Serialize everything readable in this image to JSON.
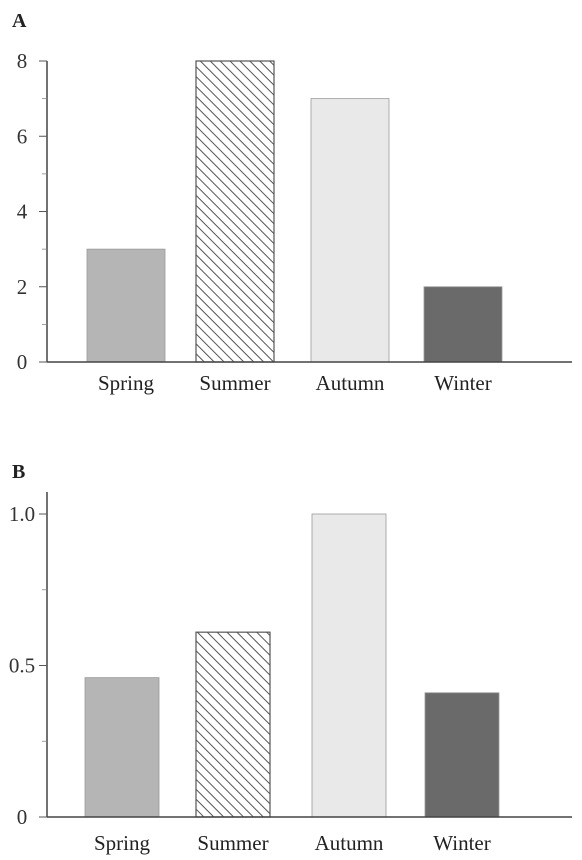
{
  "chart_data": [
    {
      "type": "bar",
      "panel_label": "A",
      "categories": [
        "Spring",
        "Summer",
        "Autumn",
        "Winter"
      ],
      "values": [
        3,
        8,
        7,
        2
      ],
      "ylim": [
        0,
        8
      ],
      "yticks": [
        0,
        2,
        4,
        6,
        8
      ],
      "ytick_labels": [
        "0",
        "2",
        "4",
        "6",
        "8"
      ],
      "yminor": [
        1,
        3,
        5,
        7
      ],
      "grid": false,
      "title": "",
      "xlabel": "",
      "ylabel": ""
    },
    {
      "type": "bar",
      "panel_label": "B",
      "categories": [
        "Spring",
        "Summer",
        "Autumn",
        "Winter"
      ],
      "values": [
        0.46,
        0.61,
        1.0,
        0.41
      ],
      "ylim": [
        0,
        1.0
      ],
      "yticks": [
        0,
        0.5,
        1.0
      ],
      "ytick_labels": [
        "0",
        "0.5",
        "1.0"
      ],
      "yminor": [
        0.25,
        0.75
      ],
      "grid": false,
      "title": "",
      "xlabel": "",
      "ylabel": ""
    }
  ],
  "bar_styles": [
    {
      "category": "Spring",
      "fill": "#b5b5b5",
      "pattern": "solid"
    },
    {
      "category": "Summer",
      "fill": "#ffffff",
      "pattern": "diagonal-hatch",
      "stroke": "#555555"
    },
    {
      "category": "Autumn",
      "fill": "#e9e9e9",
      "pattern": "solid"
    },
    {
      "category": "Winter",
      "fill": "#6a6a6a",
      "pattern": "solid"
    }
  ]
}
